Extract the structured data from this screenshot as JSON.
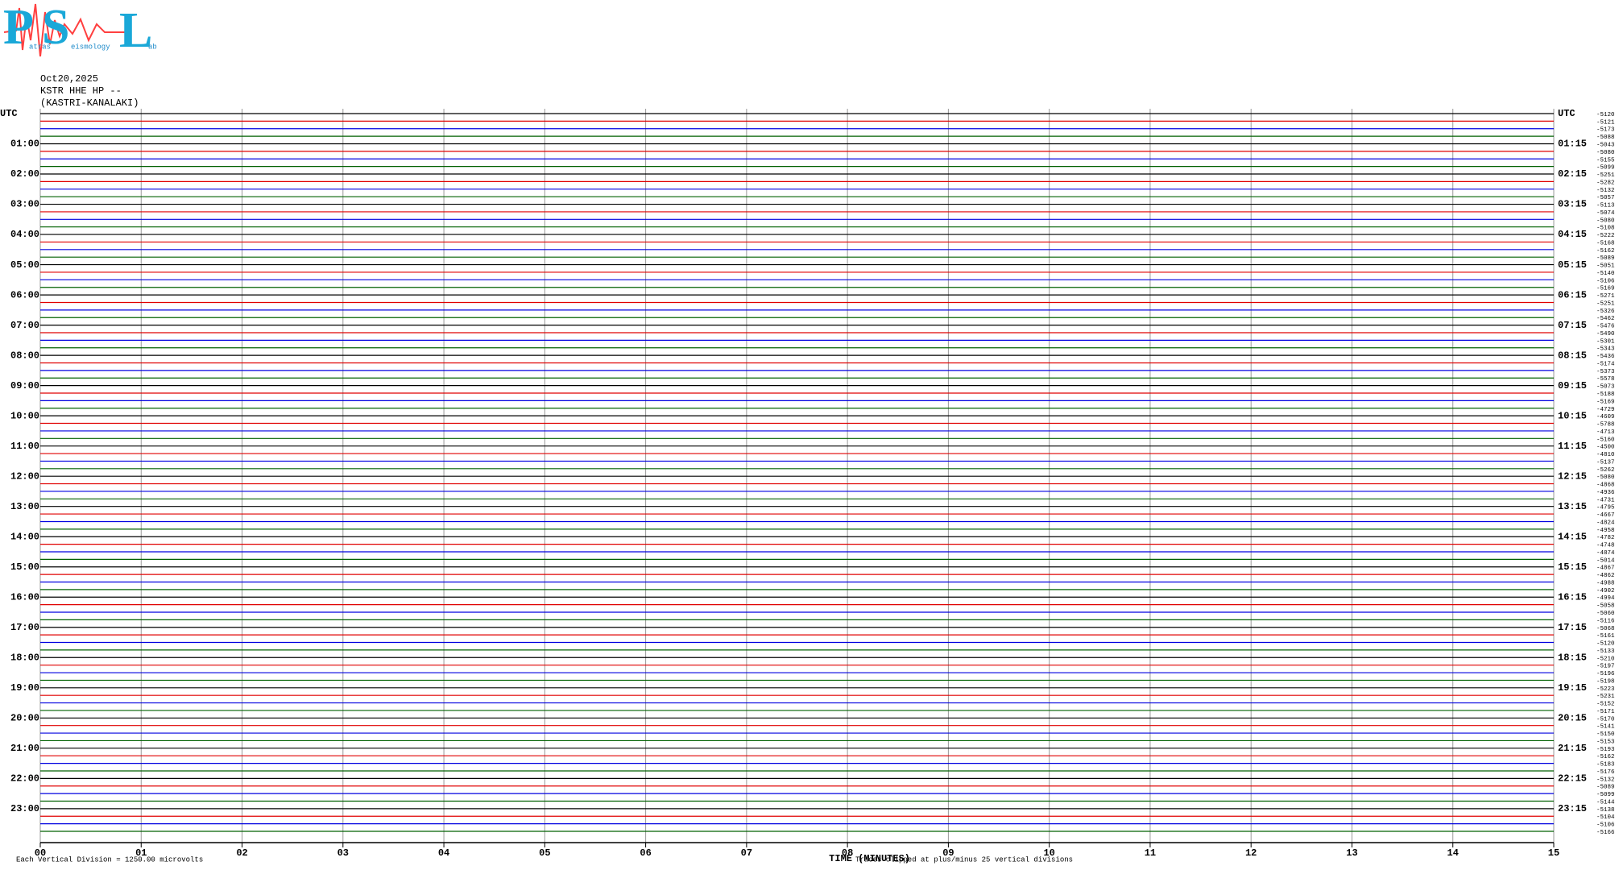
{
  "logo": {
    "letters": [
      "P",
      "S",
      "L"
    ],
    "words": [
      "atras",
      "eismology",
      "ab"
    ]
  },
  "header": {
    "date": "Oct20,2025",
    "channel": "KSTR HHE HP --",
    "station": "(KASTRI-KANALAKI)"
  },
  "chart_data": {
    "type": "helicorder",
    "x_label": "TIME (MINUTES)",
    "xlim": [
      0,
      15
    ],
    "xticks": [
      {
        "value": 0,
        "label": "00"
      },
      {
        "value": 1,
        "label": "01"
      },
      {
        "value": 2,
        "label": "02"
      },
      {
        "value": 3,
        "label": "03"
      },
      {
        "value": 4,
        "label": "04"
      },
      {
        "value": 5,
        "label": "05"
      },
      {
        "value": 6,
        "label": "06"
      },
      {
        "value": 7,
        "label": "07"
      },
      {
        "value": 8,
        "label": "08"
      },
      {
        "value": 9,
        "label": "09"
      },
      {
        "value": 10,
        "label": "10"
      },
      {
        "value": 11,
        "label": "11"
      },
      {
        "value": 12,
        "label": "12"
      },
      {
        "value": 13,
        "label": "13"
      },
      {
        "value": 14,
        "label": "14"
      },
      {
        "value": 15,
        "label": "15"
      }
    ],
    "left_labels": [
      "UTC",
      "01:00",
      "02:00",
      "03:00",
      "04:00",
      "05:00",
      "06:00",
      "07:00",
      "08:00",
      "09:00",
      "10:00",
      "11:00",
      "12:00",
      "13:00",
      "14:00",
      "15:00",
      "16:00",
      "17:00",
      "18:00",
      "19:00",
      "20:00",
      "21:00",
      "22:00",
      "23:00"
    ],
    "right_labels": [
      "UTC",
      "01:15",
      "02:15",
      "03:15",
      "04:15",
      "05:15",
      "06:15",
      "07:15",
      "08:15",
      "09:15",
      "10:15",
      "11:15",
      "12:15",
      "13:15",
      "14:15",
      "15:15",
      "16:15",
      "17:15",
      "18:15",
      "19:15",
      "20:15",
      "21:15",
      "22:15",
      "23:15"
    ],
    "trace_colors": [
      "#000000",
      "#e00000",
      "#0000e0",
      "#006000"
    ],
    "offsets": [
      -5120,
      -5121,
      -5173,
      -5088,
      -5043,
      -5080,
      -5155,
      -5099,
      -5251,
      -5282,
      -5132,
      -5057,
      -5113,
      -5074,
      -5080,
      -5108,
      -5222,
      -5168,
      -5162,
      -5089,
      -5051,
      -5140,
      -5106,
      -5169,
      -5271,
      -5251,
      -5326,
      -5462,
      -5476,
      -5490,
      -5301,
      -5343,
      -5436,
      -5174,
      -5373,
      -5578,
      -5073,
      -5188,
      -5169,
      -4729,
      -4609,
      -5788,
      -4713,
      -5160,
      -4500,
      -4810,
      -5137,
      -5262,
      -5080,
      -4868,
      -4936,
      -4731,
      -4795,
      -4667,
      -4824,
      -4958,
      -4782,
      -4748,
      -4874,
      -5014,
      -4867,
      -4862,
      -4988,
      -4902,
      -4994,
      -5058,
      -5060,
      -5116,
      -5068,
      -5161,
      -5120,
      -5133,
      -5210,
      -5197,
      -5196,
      -5198,
      -5223,
      -5231,
      -5152,
      -5171,
      -5170,
      -5141,
      -5150,
      -5153,
      -5193,
      -5162,
      -5183,
      -5176,
      -5132,
      -5089,
      -5099,
      -5144,
      -5138,
      -5104,
      -5106,
      -5166
    ],
    "scale_note": "Each Vertical Division = 1250.00 microvolts",
    "clip_note": "Traces clipped at plus/minus 25 vertical divisions"
  }
}
